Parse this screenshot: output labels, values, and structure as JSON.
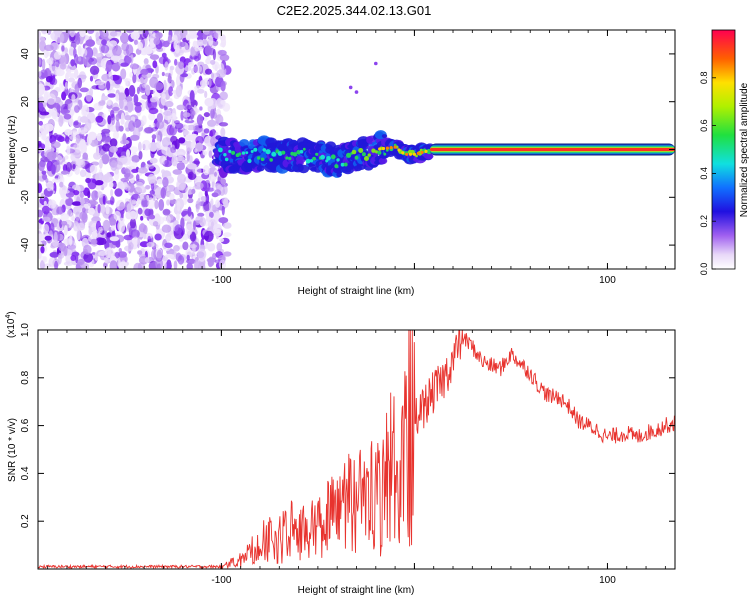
{
  "title": "C2E2.2025.344.02.13.G01",
  "colors": {
    "snr_line": "#e8332e",
    "track_core": "#ff2020",
    "track_edge": "#22cc44",
    "bg_blob": "#7a1cf0"
  },
  "chart_data": [
    {
      "type": "heatmap",
      "name": "spectrogram",
      "xlabel": "Height of straight line (km)",
      "ylabel": "Frequency (Hz)",
      "xlim": [
        -195,
        135
      ],
      "ylim": [
        -50,
        50
      ],
      "xticks": [
        -100,
        0,
        100
      ],
      "xtick_labels": [
        "-100",
        "",
        "100"
      ],
      "yticks": [
        -40,
        -20,
        0,
        20,
        40
      ],
      "ytick_labels": [
        "-40",
        "-20",
        "0",
        "20",
        "40"
      ],
      "noise_region_x": [
        -195,
        -100
      ],
      "track": {
        "x": [
          -100,
          -90,
          -80,
          -70,
          -60,
          -50,
          -40,
          -30,
          -20,
          -10,
          -5,
          0,
          10,
          135
        ],
        "y": [
          -2,
          -3,
          -2,
          -3,
          -2,
          -3,
          -5,
          -3,
          0,
          1,
          -2,
          -2,
          0,
          0
        ]
      },
      "colorbar": {
        "label": "Normalized spectral amplitude",
        "range": [
          0,
          1
        ],
        "ticks": [
          0.0,
          0.2,
          0.4,
          0.6,
          0.8
        ],
        "tick_labels": [
          "0.0",
          "0.2",
          "0.4",
          "0.6",
          "0.8"
        ]
      }
    },
    {
      "type": "line",
      "name": "snr",
      "xlabel": "Height of straight line (km)",
      "ylabel": "SNR (10 * v/v)",
      "scale_label_prefix": "(x10",
      "scale_label_exp": "4",
      "scale_label_suffix": ")",
      "xlim": [
        -195,
        135
      ],
      "ylim": [
        0,
        1.0
      ],
      "xticks": [
        -100,
        0,
        100
      ],
      "xtick_labels": [
        "-100",
        "",
        "100"
      ],
      "yticks": [
        0.2,
        0.4,
        0.6,
        0.8,
        1.0
      ],
      "ytick_labels": [
        "0.2",
        "0.4",
        "0.6",
        "0.8",
        "1.0"
      ],
      "series": [
        {
          "name": "SNR",
          "x": [
            -195,
            -180,
            -160,
            -140,
            -120,
            -100,
            -90,
            -80,
            -75,
            -70,
            -65,
            -60,
            -55,
            -50,
            -45,
            -40,
            -35,
            -30,
            -25,
            -20,
            -15,
            -10,
            -5,
            0,
            5,
            10,
            15,
            20,
            25,
            30,
            35,
            40,
            45,
            50,
            55,
            60,
            65,
            70,
            75,
            80,
            85,
            90,
            95,
            100,
            105,
            110,
            115,
            120,
            125,
            130,
            135
          ],
          "y": [
            0.01,
            0.01,
            0.01,
            0.01,
            0.01,
            0.01,
            0.04,
            0.1,
            0.14,
            0.12,
            0.16,
            0.15,
            0.14,
            0.18,
            0.2,
            0.22,
            0.27,
            0.25,
            0.3,
            0.32,
            0.38,
            0.45,
            0.55,
            0.63,
            0.68,
            0.74,
            0.79,
            0.88,
            0.97,
            0.93,
            0.87,
            0.85,
            0.84,
            0.9,
            0.86,
            0.82,
            0.76,
            0.72,
            0.72,
            0.68,
            0.62,
            0.6,
            0.58,
            0.55,
            0.56,
            0.57,
            0.55,
            0.57,
            0.58,
            0.6,
            0.61
          ]
        }
      ]
    }
  ]
}
